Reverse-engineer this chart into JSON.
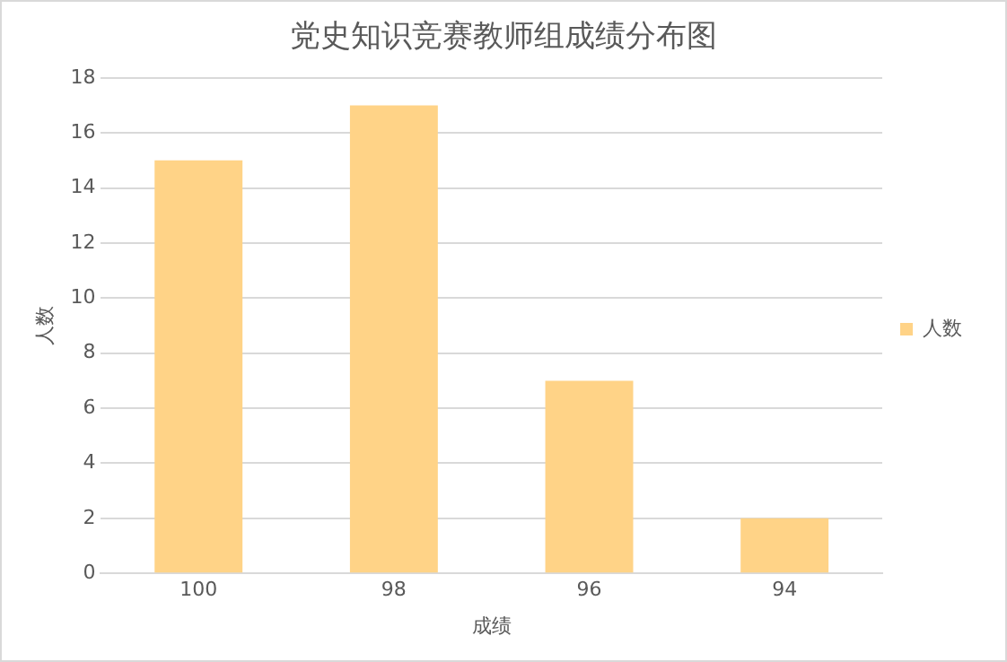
{
  "chart_data": {
    "type": "bar",
    "title": "党史知识竞赛教师组成绩分布图",
    "xlabel": "成绩",
    "ylabel": "人数",
    "categories": [
      "100",
      "98",
      "96",
      "94"
    ],
    "series": [
      {
        "name": "人数",
        "color": "#ffd387",
        "values": [
          15,
          17,
          7,
          2
        ]
      }
    ],
    "ylim": [
      0,
      18
    ],
    "yticks": [
      0,
      2,
      4,
      6,
      8,
      10,
      12,
      14,
      16,
      18
    ],
    "grid": "y",
    "legend": "right"
  }
}
